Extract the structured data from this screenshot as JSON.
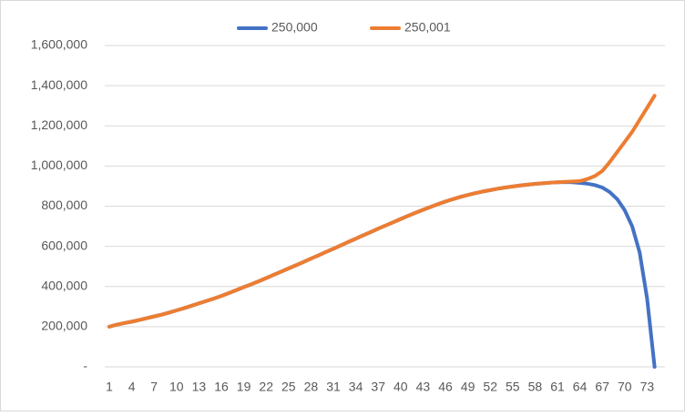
{
  "chart_data": {
    "type": "line",
    "categories": [
      "1",
      null,
      null,
      "4",
      null,
      null,
      "7",
      null,
      null,
      "10",
      null,
      null,
      "13",
      null,
      null,
      "16",
      null,
      null,
      "19",
      null,
      null,
      "22",
      null,
      null,
      "25",
      null,
      null,
      "28",
      null,
      null,
      "31",
      null,
      null,
      "34",
      null,
      null,
      "37",
      null,
      null,
      "40",
      null,
      null,
      "43",
      null,
      null,
      "46",
      null,
      null,
      "49",
      null,
      null,
      "52",
      null,
      null,
      "55",
      null,
      null,
      "58",
      null,
      null,
      "61",
      null,
      null,
      "64",
      null,
      null,
      "67",
      null,
      null,
      "70",
      null,
      null,
      "73",
      null
    ],
    "series": [
      {
        "name": "250,000",
        "color": "#4472c4",
        "values": [
          200000,
          210000,
          218000,
          225000,
          233000,
          242000,
          251000,
          260000,
          270000,
          281000,
          292000,
          304000,
          316000,
          328000,
          340000,
          353000,
          367000,
          382000,
          397000,
          411000,
          426000,
          442000,
          458000,
          474000,
          490000,
          506000,
          522000,
          539000,
          555000,
          572000,
          588000,
          605000,
          622000,
          638000,
          655000,
          671000,
          688000,
          704000,
          720000,
          736000,
          752000,
          767000,
          782000,
          796000,
          810000,
          823000,
          835000,
          846000,
          856000,
          865000,
          873000,
          880000,
          887000,
          893000,
          898000,
          903000,
          907000,
          911000,
          914000,
          917000,
          919000,
          920000,
          919000,
          916000,
          912000,
          905000,
          893000,
          870000,
          835000,
          780000,
          700000,
          570000,
          340000,
          0
        ]
      },
      {
        "name": "250,001",
        "color": "#ed7d31",
        "values": [
          200000,
          210000,
          218000,
          225000,
          233000,
          242000,
          251000,
          260000,
          270000,
          281000,
          292000,
          304000,
          316000,
          328000,
          340000,
          353000,
          367000,
          382000,
          397000,
          411000,
          426000,
          442000,
          458000,
          474000,
          490000,
          506000,
          522000,
          539000,
          555000,
          572000,
          588000,
          605000,
          622000,
          638000,
          655000,
          671000,
          688000,
          704000,
          720000,
          736000,
          752000,
          767000,
          782000,
          796000,
          810000,
          823000,
          835000,
          846000,
          856000,
          865000,
          873000,
          880000,
          887000,
          893000,
          898000,
          903000,
          907000,
          911000,
          914000,
          917000,
          919000,
          921000,
          923000,
          925000,
          935000,
          950000,
          975000,
          1020000,
          1070000,
          1120000,
          1170000,
          1230000,
          1290000,
          1350000
        ]
      }
    ],
    "ylim": [
      0,
      1600000
    ],
    "yticks": [
      {
        "value": 0,
        "label": "-"
      },
      {
        "value": 200000,
        "label": "200,000"
      },
      {
        "value": 400000,
        "label": "400,000"
      },
      {
        "value": 600000,
        "label": "600,000"
      },
      {
        "value": 800000,
        "label": "800,000"
      },
      {
        "value": 1000000,
        "label": "1,000,000"
      },
      {
        "value": 1200000,
        "label": "1,200,000"
      },
      {
        "value": 1400000,
        "label": "1,400,000"
      },
      {
        "value": 1600000,
        "label": "1,600,000"
      }
    ],
    "grid": true,
    "legend": "top"
  }
}
